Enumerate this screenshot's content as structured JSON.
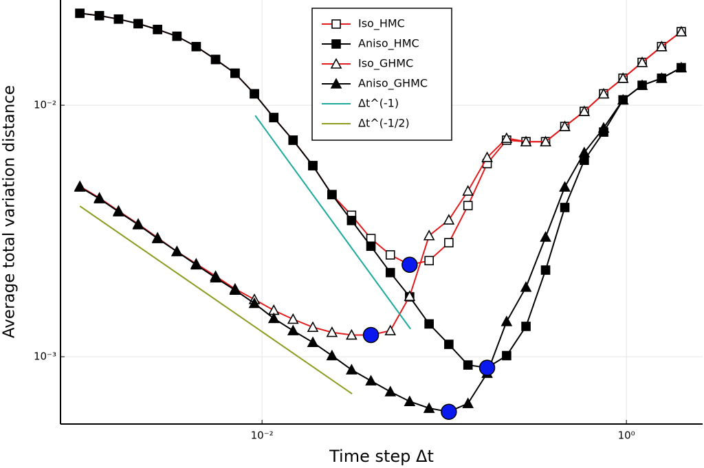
{
  "chart_data": {
    "type": "line",
    "log_x": true,
    "log_y": true,
    "grid": true,
    "x_label": "Time step Δt",
    "y_label": "Average total variation distance",
    "xlim": [
      0.000783,
      2.62
    ],
    "ylim": [
      0.00054,
      0.0262
    ],
    "xticks": [
      {
        "value": 0.01,
        "label": "10⁻²"
      },
      {
        "value": 1,
        "label": "10⁰"
      }
    ],
    "yticks": [
      {
        "value": 0.001,
        "label": "10⁻³"
      },
      {
        "value": 0.01,
        "label": "10⁻²"
      }
    ],
    "legend": "top-center",
    "x": [
      0.001,
      0.00128,
      0.00163,
      0.00209,
      0.00267,
      0.00341,
      0.00435,
      0.00556,
      0.00711,
      0.00908,
      0.0116,
      0.0148,
      0.019,
      0.0242,
      0.031,
      0.0396,
      0.0506,
      0.0646,
      0.0826,
      0.106,
      0.135,
      0.172,
      0.22,
      0.281,
      0.36,
      0.459,
      0.587,
      0.75,
      0.958,
      1.22,
      1.56,
      2.0
    ],
    "series": [
      {
        "name": "Iso_HMC",
        "color": "#e31a1c",
        "marker": "square",
        "filled": false,
        "values": [
          0.0232,
          0.0227,
          0.022,
          0.0211,
          0.02,
          0.0188,
          0.0171,
          0.0152,
          0.0134,
          0.0111,
          0.00893,
          0.00726,
          0.00575,
          0.00441,
          0.00365,
          0.00295,
          0.00254,
          0.00232,
          0.00241,
          0.00284,
          0.00399,
          0.00586,
          0.00726,
          0.00716,
          0.00716,
          0.00823,
          0.00945,
          0.0111,
          0.0128,
          0.0148,
          0.0171,
          0.0196
        ]
      },
      {
        "name": "Aniso_HMC",
        "color": "#000000",
        "marker": "square",
        "filled": true,
        "values": [
          0.0232,
          0.0227,
          0.022,
          0.0211,
          0.02,
          0.0188,
          0.0171,
          0.0152,
          0.0134,
          0.0111,
          0.00893,
          0.00726,
          0.00575,
          0.00441,
          0.00348,
          0.00275,
          0.00216,
          0.00173,
          0.00135,
          0.00112,
          0.000927,
          0.000904,
          0.00101,
          0.00132,
          0.00221,
          0.00392,
          0.00604,
          0.00782,
          0.0105,
          0.012,
          0.0128,
          0.0141
        ]
      },
      {
        "name": "Iso_GHMC",
        "color": "#e31a1c",
        "marker": "triangle",
        "filled": false,
        "values": [
          0.00476,
          0.00428,
          0.0038,
          0.00337,
          0.00297,
          0.00262,
          0.00234,
          0.00209,
          0.00186,
          0.00169,
          0.00153,
          0.00141,
          0.00131,
          0.00125,
          0.00122,
          0.00122,
          0.00127,
          0.00174,
          0.00303,
          0.0035,
          0.00456,
          0.0062,
          0.00739,
          0.00716,
          0.00716,
          0.00823,
          0.00945,
          0.0111,
          0.0128,
          0.0148,
          0.0171,
          0.0196
        ]
      },
      {
        "name": "Aniso_GHMC",
        "color": "#000000",
        "marker": "triangle",
        "filled": true,
        "values": [
          0.00473,
          0.00425,
          0.00377,
          0.00335,
          0.00295,
          0.00262,
          0.00232,
          0.00206,
          0.00184,
          0.00163,
          0.00142,
          0.00127,
          0.00114,
          0.00101,
          0.000887,
          0.000802,
          0.000726,
          0.000664,
          0.000624,
          0.000604,
          0.000652,
          0.00086,
          0.00138,
          0.00189,
          0.00299,
          0.00473,
          0.00648,
          0.00812,
          0.0105,
          0.012,
          0.0128,
          0.0141
        ]
      },
      {
        "name": "Δt^(-1)",
        "color": "#1aa99a",
        "x": [
          0.00917,
          0.0653
        ],
        "values": [
          0.0091,
          0.00129
        ]
      },
      {
        "name": "Δt^(-1/2)",
        "color": "#8c9a1e",
        "x": [
          0.001,
          0.0312
        ],
        "values": [
          0.00397,
          0.000712
        ]
      }
    ],
    "highlights": {
      "color": "#0a1aef",
      "x": [
        0.0646,
        0.0396,
        0.172,
        0.106
      ],
      "values": [
        0.00232,
        0.00122,
        0.000904,
        0.000604
      ]
    }
  }
}
